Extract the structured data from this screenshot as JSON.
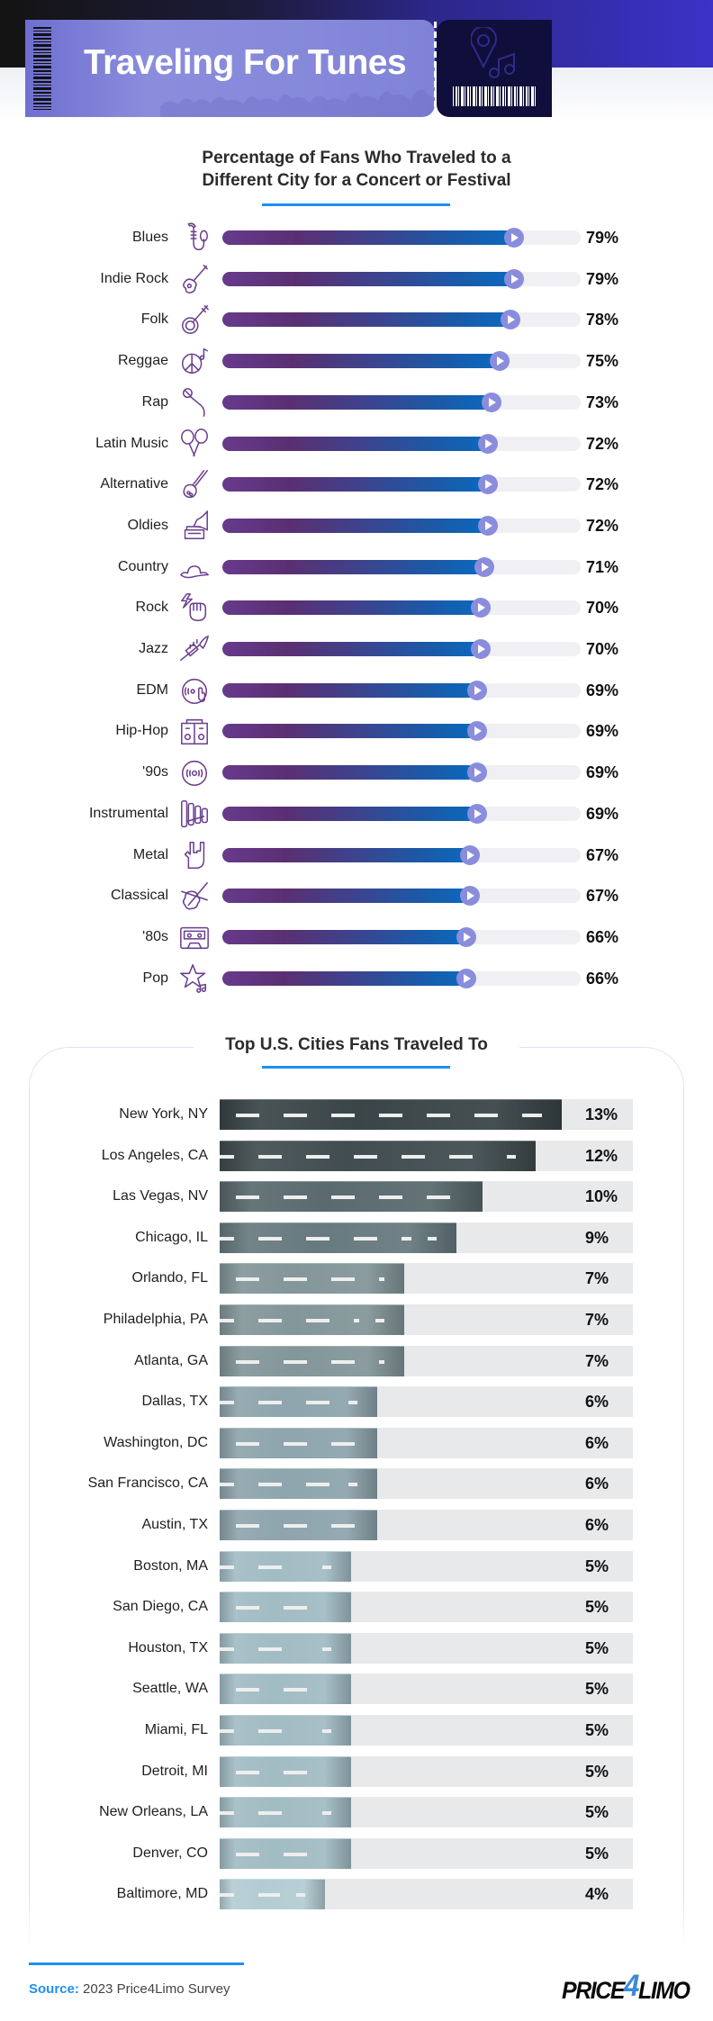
{
  "header": {
    "title": "Traveling For Tunes",
    "stub_icon": "location-pin-music-note-icon"
  },
  "chart_data": [
    {
      "type": "bar",
      "orientation": "horizontal",
      "title": "Percentage of Fans Who Traveled to a Different City for a Concert or Festival",
      "title_lines": [
        "Percentage of Fans Who Traveled to a",
        "Different City for a Concert or Festival"
      ],
      "xlim": [
        0,
        100
      ],
      "unit": "%",
      "categories": [
        "Blues",
        "Indie Rock",
        "Folk",
        "Reggae",
        "Rap",
        "Latin Music",
        "Alternative",
        "Oldies",
        "Country",
        "Rock",
        "Jazz",
        "EDM",
        "Hip-Hop",
        "'90s",
        "Instrumental",
        "Metal",
        "Classical",
        "'80s",
        "Pop"
      ],
      "values": [
        79,
        79,
        78,
        75,
        73,
        72,
        72,
        72,
        71,
        70,
        70,
        69,
        69,
        69,
        69,
        67,
        67,
        66,
        66
      ],
      "labels": [
        "79%",
        "79%",
        "78%",
        "75%",
        "73%",
        "72%",
        "72%",
        "72%",
        "71%",
        "70%",
        "70%",
        "69%",
        "69%",
        "69%",
        "69%",
        "67%",
        "67%",
        "66%",
        "66%"
      ],
      "icons": [
        "saxophone-icon",
        "electric-guitar-icon",
        "banjo-icon",
        "peace-sign-music-icon",
        "microphone-icon",
        "maracas-icon",
        "double-neck-guitar-icon",
        "gramophone-icon",
        "cowboy-hat-icon",
        "fist-lightning-icon",
        "trumpet-icon",
        "dj-turntable-icon",
        "boombox-icon",
        "vinyl-record-icon",
        "xylophone-icon",
        "rock-hand-icon",
        "cello-icon",
        "cassette-tape-icon",
        "star-music-icon"
      ],
      "colors": {
        "fill_start": "#673a8c",
        "fill_end": "#0a6ac0",
        "track": "#f0eff4",
        "knob": "#8a8cdc"
      }
    },
    {
      "type": "bar",
      "orientation": "horizontal",
      "title": "Top U.S. Cities Fans Traveled To",
      "xlim": [
        0,
        15.7
      ],
      "unit": "%",
      "categories": [
        "New York, NY",
        "Los Angeles, CA",
        "Las Vegas, NV",
        "Chicago, IL",
        "Orlando, FL",
        "Philadelphia, PA",
        "Atlanta, GA",
        "Dallas, TX",
        "Washington, DC",
        "San Francisco, CA",
        "Austin, TX",
        "Boston, MA",
        "San Diego, CA",
        "Houston, TX",
        "Seattle, WA",
        "Miami, FL",
        "Detroit, MI",
        "New Orleans, LA",
        "Denver, CO",
        "Baltimore, MD"
      ],
      "values": [
        13,
        12,
        10,
        9,
        7,
        7,
        7,
        6,
        6,
        6,
        6,
        5,
        5,
        5,
        5,
        5,
        5,
        5,
        5,
        4
      ],
      "labels": [
        "13%",
        "12%",
        "10%",
        "9%",
        "7%",
        "7%",
        "7%",
        "6%",
        "6%",
        "6%",
        "6%",
        "5%",
        "5%",
        "5%",
        "5%",
        "5%",
        "5%",
        "5%",
        "5%",
        "4%"
      ],
      "colors_by_value": {
        "13": "#3a4548",
        "12": "#414d50",
        "10": "#5a6a6e",
        "9": "#677a7f",
        "7": "#839699",
        "6": "#8ea5ad",
        "5": "#a2bcc4",
        "4": "#b3ccd3"
      },
      "track_color": "#e8e9eb"
    }
  ],
  "footer": {
    "source_label": "Source:",
    "source_text": " 2023 Price4Limo Survey",
    "logo": {
      "part1": "PRICE",
      "part2": "4",
      "part3": "LIMO"
    }
  },
  "accent_color": "#1e90f0"
}
